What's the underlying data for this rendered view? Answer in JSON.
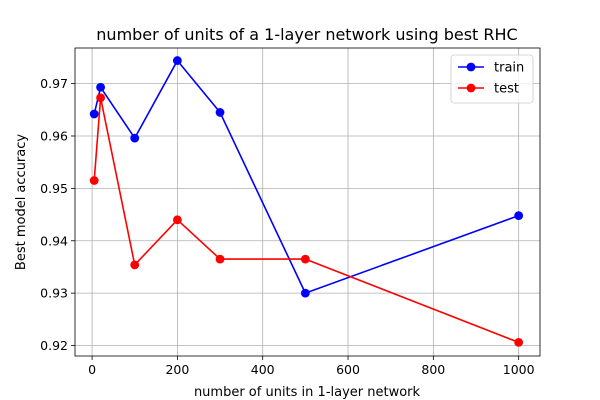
{
  "chart_data": {
    "type": "line",
    "title": "number of units of a 1-layer network using best RHC",
    "xlabel": "number of units in 1-layer network",
    "ylabel": "Best  model accuracy",
    "x": [
      5,
      20,
      100,
      200,
      300,
      500,
      1000
    ],
    "series": [
      {
        "name": "train",
        "color": "#0000ff",
        "marker": "circle",
        "values": [
          0.9642,
          0.9693,
          0.9596,
          0.9744,
          0.9645,
          0.93,
          0.9448
        ]
      },
      {
        "name": "test",
        "color": "#ff0000",
        "marker": "circle",
        "values": [
          0.9515,
          0.9673,
          0.9354,
          0.944,
          0.9365,
          0.9365,
          0.9206
        ]
      }
    ],
    "xlim": [
      -40,
      1050
    ],
    "ylim": [
      0.918,
      0.9768
    ],
    "xticks": [
      0,
      200,
      400,
      600,
      800,
      1000
    ],
    "yticks": [
      0.92,
      0.93,
      0.94,
      0.95,
      0.96,
      0.97
    ],
    "ytick_labels": [
      "0.92",
      "0.93",
      "0.94",
      "0.95",
      "0.96",
      "0.97"
    ],
    "grid": true,
    "legend_position": "top-right"
  }
}
